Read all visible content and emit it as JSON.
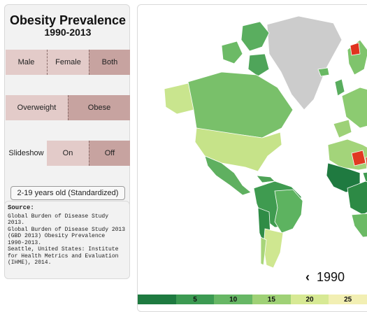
{
  "panel": {
    "title": "Obesity Prevalence",
    "subtitle": "1990-2013",
    "sex_toggle": {
      "options": [
        "Male",
        "Female",
        "Both"
      ],
      "selected": "Both"
    },
    "measure_toggle": {
      "options": [
        "Overweight",
        "Obese"
      ],
      "selected": "Obese"
    },
    "slideshow": {
      "label": "Slideshow",
      "options": [
        "On",
        "Off"
      ],
      "selected": "Off"
    },
    "age_button": "2-19 years old (Standardized)"
  },
  "source": {
    "heading": "Source:",
    "lines": [
      "Global Burden of Disease Study 2013.",
      "Global Burden of Disease Study 2013",
      "(GBD 2013) Obesity Prevalence",
      "1990-2013.",
      "Seattle, United States: Institute",
      "for Health Metrics and Evaluation",
      "(IHME), 2014."
    ]
  },
  "map": {
    "year_prev_icon": "‹",
    "year": "1990",
    "legend": {
      "labels": [
        "5",
        "10",
        "15",
        "20",
        "25"
      ],
      "colors": [
        "#1e7a40",
        "#3c9a52",
        "#67b765",
        "#9fd176",
        "#d7e994",
        "#f2efb3"
      ]
    }
  }
}
